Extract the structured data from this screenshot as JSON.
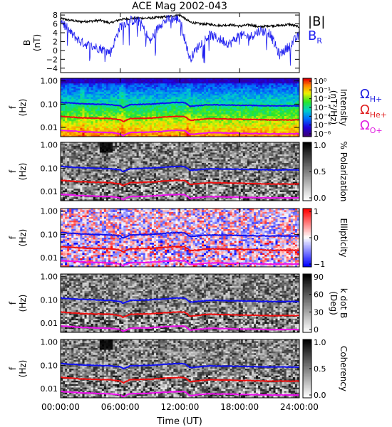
{
  "chart_data": {
    "title": "ACE Mag 2002-043",
    "xlabel": "Time (UT)",
    "xticks": [
      "00:00:00",
      "06:00:00",
      "12:00:00",
      "18:00:00",
      "24:00:00"
    ],
    "x_hours_range": [
      0,
      24
    ],
    "panels": [
      {
        "type": "line",
        "ylabel": "B",
        "yunit": "(nT)",
        "ylim": [
          -5,
          8.5
        ],
        "yticks": [
          "8",
          "6",
          "4",
          "2",
          "0",
          "−2",
          "−4"
        ],
        "ytick_values": [
          8,
          6,
          4,
          2,
          0,
          -2,
          -4
        ],
        "series": [
          {
            "name": "|B|",
            "color": "#000000",
            "x": [
              0,
              1,
              2,
              3,
              4,
              5,
              6,
              7,
              8,
              9,
              10,
              11,
              12,
              13,
              14,
              15,
              16,
              17,
              18,
              19,
              20,
              21,
              22,
              23,
              24
            ],
            "y": [
              7.2,
              6.8,
              6.5,
              6.6,
              6.8,
              6.2,
              7.0,
              7.2,
              7.3,
              7.3,
              7.5,
              7.7,
              8.0,
              6.4,
              6.0,
              5.9,
              5.6,
              5.8,
              5.5,
              5.8,
              5.3,
              5.6,
              5.6,
              5.9,
              5.3
            ]
          },
          {
            "name": "B_R",
            "color": "#1f1ff0",
            "x": [
              0,
              1,
              2,
              3,
              4,
              5,
              6,
              7,
              8,
              9,
              10,
              11,
              12,
              13,
              14,
              15,
              16,
              17,
              18,
              19,
              20,
              21,
              22,
              23,
              24
            ],
            "y": [
              7.0,
              4.0,
              2.0,
              1.0,
              0.5,
              -0.5,
              5.5,
              6.8,
              6.5,
              2.0,
              6.0,
              7.2,
              7.0,
              -2.0,
              1.5,
              3.5,
              2.5,
              1.5,
              3.5,
              3.0,
              4.5,
              4.0,
              -1.0,
              1.0,
              3.5
            ]
          }
        ]
      },
      {
        "type": "heatmap",
        "colormap": "rainbow",
        "ylabel": "f",
        "yunit": "(Hz)",
        "yticks": [
          "1.00",
          "0.10",
          "0.01"
        ],
        "ylim_log": [
          0.004,
          1.3
        ],
        "colorbar_label": "Intensity",
        "colorbar_unit": "(nT²/Hz)",
        "colorbar_ticks": [
          "10⁰",
          "10⁻¹",
          "10⁻²",
          "10⁻³",
          "10⁻⁴",
          "10⁻⁵",
          "10⁻⁶"
        ],
        "gyro_labels": [
          {
            "base": "Ω",
            "sub": "H+",
            "color": "#2020e0"
          },
          {
            "base": "Ω",
            "sub": "He+",
            "color": "#e02020"
          },
          {
            "base": "Ω",
            "sub": "O+",
            "color": "#e020e0"
          }
        ]
      },
      {
        "type": "heatmap",
        "colormap": "gray",
        "ylabel": "f",
        "yunit": "(Hz)",
        "yticks": [
          "1.00",
          "0.10",
          "0.01"
        ],
        "colorbar_label": "% Polarization",
        "colorbar_ticks": [
          "1.0",
          "0.5",
          "0.0"
        ]
      },
      {
        "type": "heatmap",
        "colormap": "red-white-blue",
        "ylabel": "f",
        "yunit": "(Hz)",
        "yticks": [
          "1.00",
          "0.10",
          "0.01"
        ],
        "colorbar_label": "Ellipticity",
        "colorbar_ticks": [
          "1",
          "0",
          "−1"
        ]
      },
      {
        "type": "heatmap",
        "colormap": "gray",
        "ylabel": "f",
        "yunit": "(Hz)",
        "yticks": [
          "1.00",
          "0.10",
          "0.01"
        ],
        "colorbar_label": "k dot B",
        "colorbar_unit": "(Deg)",
        "colorbar_ticks": [
          "90",
          "60",
          "30",
          "0"
        ]
      },
      {
        "type": "heatmap",
        "colormap": "gray",
        "ylabel": "f",
        "yunit": "(Hz)",
        "yticks": [
          "1.00",
          "0.10",
          "0.01"
        ],
        "colorbar_label": "Coherency",
        "colorbar_ticks": [
          "1.0",
          "0.5",
          "0.0"
        ]
      }
    ],
    "gyrofrequency_lines": [
      {
        "species": "H+",
        "color": "#1010ee",
        "t": [
          0,
          2,
          4,
          5,
          6,
          6.3,
          7,
          9,
          11,
          12,
          12.5,
          13,
          15,
          18,
          21,
          24
        ],
        "f": [
          0.12,
          0.105,
          0.098,
          0.095,
          0.085,
          0.07,
          0.095,
          0.1,
          0.115,
          0.12,
          0.115,
          0.08,
          0.095,
          0.09,
          0.085,
          0.085
        ]
      },
      {
        "species": "He+",
        "color": "#ee1010",
        "t": [
          0,
          2,
          4,
          5,
          6,
          6.3,
          7,
          9,
          11,
          12,
          12.5,
          13,
          15,
          18,
          21,
          24
        ],
        "f": [
          0.03,
          0.026,
          0.0245,
          0.024,
          0.021,
          0.0175,
          0.024,
          0.025,
          0.029,
          0.03,
          0.029,
          0.02,
          0.024,
          0.0225,
          0.021,
          0.021
        ]
      },
      {
        "species": "O+",
        "color": "#ee10ee",
        "t": [
          0,
          2,
          4,
          5,
          6,
          6.3,
          7,
          9,
          11,
          12,
          12.5,
          13,
          15,
          18,
          21,
          24
        ],
        "f": [
          0.0075,
          0.0066,
          0.0061,
          0.006,
          0.0053,
          0.0044,
          0.006,
          0.0063,
          0.0072,
          0.0075,
          0.0072,
          0.005,
          0.006,
          0.0056,
          0.0053,
          0.0053
        ]
      }
    ]
  }
}
